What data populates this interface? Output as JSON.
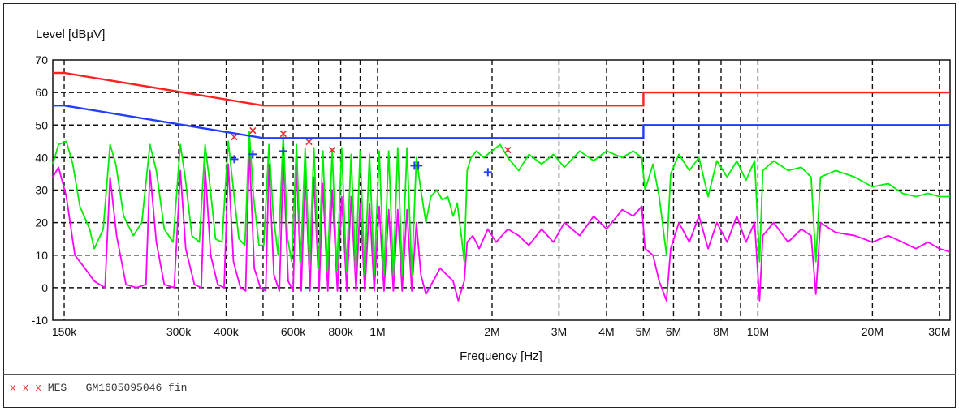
{
  "footer": {
    "marks": "x x x",
    "label": "MES",
    "dataset": "GM1605095046_fin"
  },
  "chart_data": {
    "type": "line",
    "title": "",
    "ylabel": "Level [dBµV]",
    "xlabel": "Frequency [Hz]",
    "xscale": "log",
    "xlim": [
      140000,
      32000000
    ],
    "ylim": [
      -10,
      70
    ],
    "grid": true,
    "yticks": [
      70,
      60,
      50,
      40,
      30,
      20,
      10,
      0,
      -10
    ],
    "xticks": [
      {
        "value": 150000,
        "label": "150k"
      },
      {
        "value": 300000,
        "label": "300k"
      },
      {
        "value": 400000,
        "label": "400k"
      },
      {
        "value": 600000,
        "label": "600k"
      },
      {
        "value": 800000,
        "label": "800k"
      },
      {
        "value": 1000000,
        "label": "1M"
      },
      {
        "value": 2000000,
        "label": "2M"
      },
      {
        "value": 3000000,
        "label": "3M"
      },
      {
        "value": 4000000,
        "label": "4M"
      },
      {
        "value": 5000000,
        "label": "5M"
      },
      {
        "value": 6000000,
        "label": "6M"
      },
      {
        "value": 8000000,
        "label": "8M"
      },
      {
        "value": 10000000,
        "label": "10M"
      },
      {
        "value": 20000000,
        "label": "20M"
      },
      {
        "value": 30000000,
        "label": "30M"
      }
    ],
    "extra_grid": [
      500000,
      700000,
      900000,
      7000000,
      9000000
    ],
    "limit_lines": [
      {
        "color": "#ff2020",
        "points": [
          [
            140000,
            66
          ],
          [
            150000,
            66
          ],
          [
            500000,
            56
          ],
          [
            5000000,
            56
          ],
          [
            5000000,
            60
          ],
          [
            32000000,
            60
          ]
        ]
      },
      {
        "color": "#1f3cff",
        "points": [
          [
            140000,
            56
          ],
          [
            150000,
            56
          ],
          [
            500000,
            46
          ],
          [
            5000000,
            46
          ],
          [
            5000000,
            50
          ],
          [
            32000000,
            50
          ]
        ]
      }
    ],
    "series": [
      {
        "color": "#00ee00",
        "points": [
          [
            140000,
            38
          ],
          [
            145000,
            44
          ],
          [
            152000,
            45
          ],
          [
            158000,
            38
          ],
          [
            165000,
            25
          ],
          [
            175000,
            18
          ],
          [
            180000,
            12
          ],
          [
            190000,
            18
          ],
          [
            198000,
            44
          ],
          [
            205000,
            38
          ],
          [
            215000,
            22
          ],
          [
            228000,
            16
          ],
          [
            240000,
            20
          ],
          [
            252000,
            44
          ],
          [
            262000,
            36
          ],
          [
            275000,
            18
          ],
          [
            290000,
            14
          ],
          [
            303000,
            44
          ],
          [
            312000,
            34
          ],
          [
            325000,
            16
          ],
          [
            340000,
            14
          ],
          [
            352000,
            44
          ],
          [
            362000,
            32
          ],
          [
            375000,
            15
          ],
          [
            390000,
            14
          ],
          [
            405000,
            45
          ],
          [
            418000,
            30
          ],
          [
            432000,
            15
          ],
          [
            448000,
            13
          ],
          [
            460000,
            48
          ],
          [
            472000,
            28
          ],
          [
            488000,
            13
          ],
          [
            502000,
            13
          ],
          [
            518000,
            44
          ],
          [
            532000,
            22
          ],
          [
            548000,
            10
          ],
          [
            565000,
            47
          ],
          [
            580000,
            15
          ],
          [
            595000,
            8
          ],
          [
            612000,
            44
          ],
          [
            628000,
            8
          ],
          [
            645000,
            43
          ],
          [
            662000,
            6
          ],
          [
            680000,
            43
          ],
          [
            700000,
            6
          ],
          [
            718000,
            42
          ],
          [
            738000,
            5
          ],
          [
            760000,
            42
          ],
          [
            782000,
            5
          ],
          [
            805000,
            43
          ],
          [
            828000,
            5
          ],
          [
            852000,
            41
          ],
          [
            876000,
            5
          ],
          [
            900000,
            42
          ],
          [
            925000,
            4
          ],
          [
            952000,
            41
          ],
          [
            980000,
            4
          ],
          [
            1010000,
            42
          ],
          [
            1040000,
            4
          ],
          [
            1070000,
            42
          ],
          [
            1100000,
            4
          ],
          [
            1130000,
            43
          ],
          [
            1160000,
            4
          ],
          [
            1195000,
            43
          ],
          [
            1230000,
            4
          ],
          [
            1265000,
            40
          ],
          [
            1300000,
            30
          ],
          [
            1340000,
            20
          ],
          [
            1380000,
            28
          ],
          [
            1430000,
            30
          ],
          [
            1480000,
            27
          ],
          [
            1530000,
            28
          ],
          [
            1580000,
            22
          ],
          [
            1620000,
            26
          ],
          [
            1660000,
            16
          ],
          [
            1690000,
            8
          ],
          [
            1720000,
            36
          ],
          [
            1760000,
            40
          ],
          [
            1820000,
            42
          ],
          [
            1900000,
            40
          ],
          [
            2000000,
            42
          ],
          [
            2100000,
            44
          ],
          [
            2200000,
            40
          ],
          [
            2350000,
            36
          ],
          [
            2500000,
            41
          ],
          [
            2700000,
            38
          ],
          [
            2900000,
            41
          ],
          [
            3100000,
            37
          ],
          [
            3400000,
            42
          ],
          [
            3700000,
            39
          ],
          [
            4000000,
            42
          ],
          [
            4400000,
            40
          ],
          [
            4700000,
            42
          ],
          [
            4950000,
            40
          ],
          [
            5050000,
            30
          ],
          [
            5300000,
            38
          ],
          [
            5500000,
            28
          ],
          [
            5750000,
            10
          ],
          [
            5900000,
            35
          ],
          [
            6200000,
            41
          ],
          [
            6600000,
            36
          ],
          [
            7000000,
            40
          ],
          [
            7400000,
            28
          ],
          [
            7800000,
            39
          ],
          [
            8300000,
            34
          ],
          [
            8800000,
            39
          ],
          [
            9300000,
            33
          ],
          [
            9800000,
            39
          ],
          [
            10100000,
            8
          ],
          [
            10300000,
            36
          ],
          [
            11000000,
            39
          ],
          [
            12000000,
            36
          ],
          [
            13000000,
            37
          ],
          [
            13800000,
            34
          ],
          [
            14200000,
            8
          ],
          [
            14600000,
            34
          ],
          [
            16000000,
            36
          ],
          [
            18000000,
            34
          ],
          [
            20000000,
            31
          ],
          [
            22000000,
            32
          ],
          [
            24000000,
            29
          ],
          [
            26000000,
            28
          ],
          [
            28000000,
            29
          ],
          [
            30000000,
            28
          ],
          [
            32000000,
            28
          ]
        ]
      },
      {
        "color": "#ff00ff",
        "points": [
          [
            140000,
            34
          ],
          [
            145000,
            37
          ],
          [
            152000,
            28
          ],
          [
            160000,
            10
          ],
          [
            170000,
            6
          ],
          [
            180000,
            2
          ],
          [
            192000,
            0
          ],
          [
            198000,
            34
          ],
          [
            206000,
            16
          ],
          [
            218000,
            1
          ],
          [
            232000,
            0
          ],
          [
            246000,
            1
          ],
          [
            252000,
            36
          ],
          [
            262000,
            14
          ],
          [
            275000,
            1
          ],
          [
            292000,
            0
          ],
          [
            303000,
            36
          ],
          [
            313000,
            12
          ],
          [
            330000,
            1
          ],
          [
            344000,
            0
          ],
          [
            352000,
            37
          ],
          [
            364000,
            10
          ],
          [
            380000,
            1
          ],
          [
            395000,
            0
          ],
          [
            405000,
            38
          ],
          [
            418000,
            8
          ],
          [
            436000,
            0
          ],
          [
            450000,
            -1
          ],
          [
            460000,
            43
          ],
          [
            474000,
            6
          ],
          [
            492000,
            0
          ],
          [
            508000,
            -1
          ],
          [
            518000,
            38
          ],
          [
            534000,
            4
          ],
          [
            552000,
            -1
          ],
          [
            565000,
            40
          ],
          [
            582000,
            2
          ],
          [
            600000,
            -1
          ],
          [
            612000,
            38
          ],
          [
            630000,
            -1
          ],
          [
            645000,
            36
          ],
          [
            664000,
            -1
          ],
          [
            680000,
            34
          ],
          [
            702000,
            -1
          ],
          [
            718000,
            32
          ],
          [
            740000,
            -1
          ],
          [
            760000,
            30
          ],
          [
            784000,
            -1
          ],
          [
            805000,
            28
          ],
          [
            830000,
            -1
          ],
          [
            852000,
            28
          ],
          [
            878000,
            -1
          ],
          [
            900000,
            26
          ],
          [
            926000,
            -1
          ],
          [
            952000,
            26
          ],
          [
            980000,
            -1
          ],
          [
            1010000,
            25
          ],
          [
            1040000,
            -1
          ],
          [
            1070000,
            24
          ],
          [
            1100000,
            -1
          ],
          [
            1130000,
            24
          ],
          [
            1160000,
            -1
          ],
          [
            1195000,
            24
          ],
          [
            1230000,
            -1
          ],
          [
            1265000,
            20
          ],
          [
            1300000,
            4
          ],
          [
            1340000,
            -2
          ],
          [
            1400000,
            2
          ],
          [
            1460000,
            6
          ],
          [
            1520000,
            4
          ],
          [
            1580000,
            2
          ],
          [
            1630000,
            -4
          ],
          [
            1690000,
            2
          ],
          [
            1720000,
            14
          ],
          [
            1780000,
            16
          ],
          [
            1850000,
            12
          ],
          [
            1950000,
            18
          ],
          [
            2050000,
            14
          ],
          [
            2200000,
            18
          ],
          [
            2350000,
            16
          ],
          [
            2500000,
            13
          ],
          [
            2700000,
            18
          ],
          [
            2900000,
            14
          ],
          [
            3100000,
            20
          ],
          [
            3400000,
            16
          ],
          [
            3700000,
            22
          ],
          [
            4000000,
            18
          ],
          [
            4400000,
            24
          ],
          [
            4700000,
            22
          ],
          [
            4950000,
            25
          ],
          [
            5050000,
            12
          ],
          [
            5300000,
            10
          ],
          [
            5500000,
            2
          ],
          [
            5750000,
            -4
          ],
          [
            5900000,
            12
          ],
          [
            6200000,
            20
          ],
          [
            6600000,
            14
          ],
          [
            7000000,
            22
          ],
          [
            7400000,
            12
          ],
          [
            7800000,
            20
          ],
          [
            8300000,
            14
          ],
          [
            8800000,
            22
          ],
          [
            9300000,
            14
          ],
          [
            9800000,
            20
          ],
          [
            10100000,
            -4
          ],
          [
            10300000,
            16
          ],
          [
            11000000,
            20
          ],
          [
            12000000,
            14
          ],
          [
            13000000,
            18
          ],
          [
            13800000,
            16
          ],
          [
            14200000,
            -2
          ],
          [
            14600000,
            20
          ],
          [
            16000000,
            17
          ],
          [
            18000000,
            16
          ],
          [
            20000000,
            14
          ],
          [
            22000000,
            16
          ],
          [
            24000000,
            14
          ],
          [
            26000000,
            12
          ],
          [
            28000000,
            14
          ],
          [
            30000000,
            12
          ],
          [
            32000000,
            11
          ]
        ]
      }
    ],
    "qp_markers": {
      "color": "#e83030",
      "points": [
        [
          420000,
          46.5
        ],
        [
          470000,
          48.5
        ],
        [
          565000,
          47.5
        ],
        [
          660000,
          45
        ],
        [
          760000,
          42.5
        ],
        [
          2200000,
          42.5
        ]
      ]
    },
    "avg_markers": {
      "color": "#1f3cff",
      "points": [
        [
          420000,
          39.5
        ],
        [
          470000,
          41
        ],
        [
          565000,
          42
        ],
        [
          1250000,
          37.5
        ],
        [
          1280000,
          37.5
        ],
        [
          1950000,
          35.5
        ]
      ]
    }
  }
}
